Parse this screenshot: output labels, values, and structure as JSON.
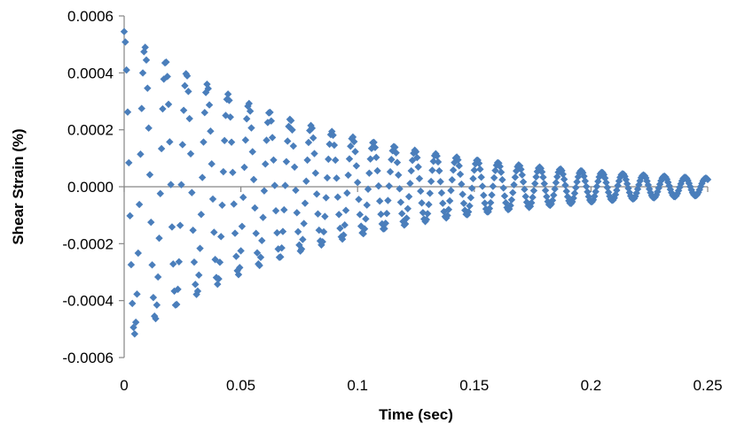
{
  "chart_data": {
    "type": "scatter",
    "title": "",
    "xlabel": "Time (sec)",
    "ylabel": "Shear Strain (%)",
    "xlim": [
      0,
      0.25
    ],
    "ylim": [
      -0.0006,
      0.0006
    ],
    "xticks": [
      0,
      0.05,
      0.1,
      0.15,
      0.2,
      0.25
    ],
    "xtick_labels": [
      "0",
      "0.05",
      "0.1",
      "0.15",
      "0.2",
      "0.25"
    ],
    "yticks": [
      0.0006,
      0.0004,
      0.0002,
      0.0,
      -0.0002,
      -0.0004,
      -0.0006
    ],
    "ytick_labels": [
      "0.0006",
      "0.0004",
      "0.0002",
      "0.0000",
      "-0.0002",
      "-0.0004",
      "-0.0006"
    ],
    "grid": false,
    "legend": "none",
    "marker": "diamond",
    "colors": {
      "series": "#4A7EBB",
      "axis": "#868686"
    },
    "signal": {
      "description_type": "damped_oscillation",
      "initial_amplitude": 0.000545,
      "amplitude_at_0_25": 3e-05,
      "period_sec": 0.0089,
      "phase_start": "peak",
      "sample_interval_sec": 0.0005,
      "t_start": 0,
      "t_end": 0.25
    },
    "series": [
      {
        "values_sample": [
          [
            0.0,
            0.000545
          ],
          [
            0.0045,
            -0.00059
          ],
          [
            0.0089,
            0.00052
          ],
          [
            0.0134,
            -0.0005
          ],
          [
            0.0178,
            0.00046
          ],
          [
            0.0223,
            -0.00043
          ],
          [
            0.0267,
            0.00039
          ],
          [
            0.0312,
            -0.00037
          ],
          [
            0.0356,
            0.00034
          ],
          [
            0.0445,
            0.00028
          ],
          [
            0.0534,
            0.00024
          ],
          [
            0.0623,
            0.0002
          ],
          [
            0.0712,
            0.00018
          ],
          [
            0.0801,
            0.00016
          ],
          [
            0.089,
            0.00014
          ],
          [
            0.0979,
            0.00011
          ],
          [
            0.1068,
            0.0001
          ],
          [
            0.1157,
            9e-05
          ],
          [
            0.1246,
            8e-05
          ],
          [
            0.1335,
            7e-05
          ],
          [
            0.1424,
            6e-05
          ],
          [
            0.1513,
            5e-05
          ],
          [
            0.1602,
            5e-05
          ],
          [
            0.1691,
            4e-05
          ],
          [
            0.178,
            4e-05
          ],
          [
            0.1869,
            4e-05
          ],
          [
            0.2047,
            3e-05
          ],
          [
            0.2225,
            3e-05
          ],
          [
            0.2403,
            3e-05
          ],
          [
            0.25,
            1e-05
          ]
        ]
      }
    ]
  }
}
